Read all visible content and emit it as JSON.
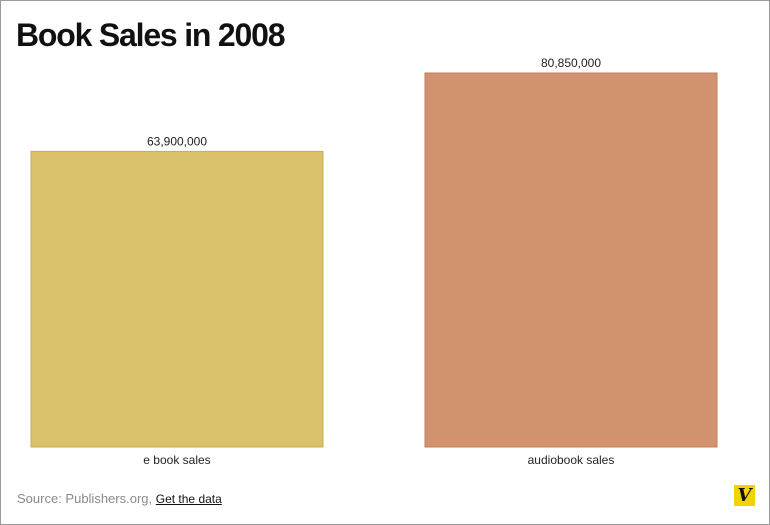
{
  "title": "Book Sales in 2008",
  "chart_data": {
    "type": "bar",
    "categories": [
      "e book sales",
      "audiobook sales"
    ],
    "values": [
      63900000,
      80850000
    ],
    "value_labels": [
      "63,900,000",
      "80,850,000"
    ],
    "colors": [
      "#d9c06a",
      "#d1926d"
    ],
    "border_colors": [
      "#c9ad52",
      "#c07d58"
    ],
    "ylim": [
      0,
      80850000
    ],
    "grid": false,
    "legend": "none"
  },
  "footer": {
    "source_text": "Source: Publishers.org,",
    "link_text": "Get the data"
  },
  "logo": {
    "letter": "V",
    "color": "#f2d300"
  }
}
